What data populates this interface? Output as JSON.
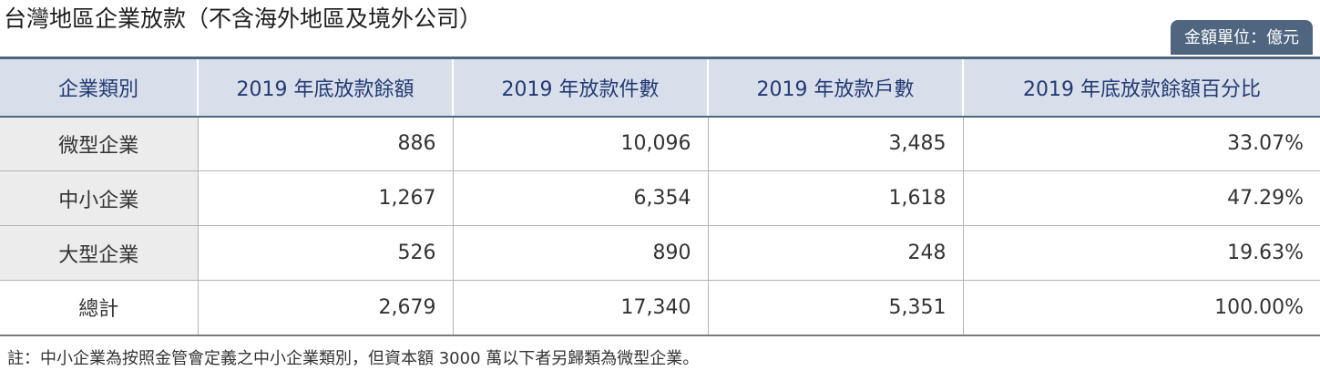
{
  "title": "台灣地區企業放款（不含海外地區及境外公司）",
  "unit_label": "金額單位：億元",
  "table": {
    "headers": [
      "企業類別",
      "2019 年底放款餘額",
      "2019 年放款件數",
      "2019 年放款戶數",
      "2019 年底放款餘額百分比"
    ],
    "rows": [
      {
        "category": "微型企業",
        "balance": "886",
        "loan_count": "10,096",
        "account_count": "3,485",
        "percentage": "33.07%"
      },
      {
        "category": "中小企業",
        "balance": "1,267",
        "loan_count": "6,354",
        "account_count": "1,618",
        "percentage": "47.29%"
      },
      {
        "category": "大型企業",
        "balance": "526",
        "loan_count": "890",
        "account_count": "248",
        "percentage": "19.63%"
      },
      {
        "category": "總計",
        "balance": "2,679",
        "loan_count": "17,340",
        "account_count": "5,351",
        "percentage": "100.00%"
      }
    ]
  },
  "footnote": "註：中小企業為按照金管會定義之中小企業類別，但資本額 3000 萬以下者另歸類為微型企業。",
  "colors": {
    "header_bg": "#d8dfeb",
    "header_text": "#233a73",
    "badge_bg": "#4f6580",
    "category_bg": "#ececec"
  }
}
